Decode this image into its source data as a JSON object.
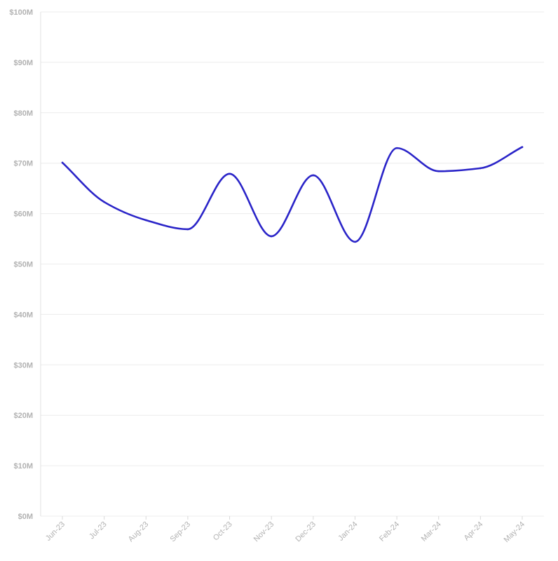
{
  "chart_data": {
    "type": "line",
    "title": "",
    "xlabel": "",
    "ylabel": "",
    "categories": [
      "Jun-23",
      "Jul-23",
      "Aug-23",
      "Sep-23",
      "Oct-23",
      "Nov-23",
      "Dec-23",
      "Jan-24",
      "Feb-24",
      "Mar-24",
      "Apr-24",
      "May-24"
    ],
    "series": [
      {
        "name": "",
        "color": "#2a24c8",
        "values": [
          70.1,
          62.3,
          58.7,
          56.9,
          67.9,
          55.5,
          67.6,
          54.4,
          73.0,
          68.4,
          69.0,
          73.2
        ]
      }
    ],
    "y_unit": "$M",
    "ylim": [
      0,
      100
    ],
    "y_ticks": [
      0,
      10,
      20,
      30,
      40,
      50,
      60,
      70,
      80,
      90,
      100
    ],
    "y_tick_labels": [
      "$0M",
      "$10M",
      "$20M",
      "$30M",
      "$40M",
      "$50M",
      "$60M",
      "$70M",
      "$80M",
      "$90M",
      "$100M"
    ],
    "grid": true,
    "legend": "none",
    "line_style": "smooth"
  }
}
